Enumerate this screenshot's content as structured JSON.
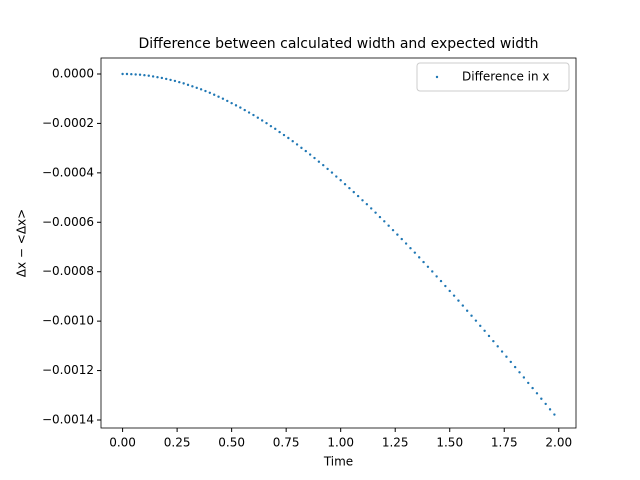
{
  "chart_data": {
    "type": "scatter",
    "title": "Difference between calculated width and expected width",
    "x_label": "Time",
    "y_label": "Δx − <Δx>",
    "x": [
      0,
      0.02,
      0.04,
      0.06,
      0.08,
      0.1,
      0.12,
      0.14,
      0.16,
      0.18,
      0.2,
      0.22,
      0.24,
      0.26,
      0.28,
      0.3,
      0.32,
      0.34,
      0.36,
      0.38,
      0.4,
      0.42,
      0.44,
      0.46,
      0.48,
      0.5,
      0.52,
      0.54,
      0.56,
      0.58,
      0.6,
      0.62,
      0.64,
      0.66,
      0.68,
      0.7,
      0.72,
      0.74,
      0.76,
      0.78,
      0.8,
      0.82,
      0.84,
      0.86,
      0.88,
      0.9,
      0.92,
      0.94,
      0.96,
      0.98,
      1,
      1.02,
      1.04,
      1.06,
      1.08,
      1.1,
      1.12,
      1.14,
      1.16,
      1.18,
      1.2,
      1.22,
      1.24,
      1.26,
      1.28,
      1.3,
      1.32,
      1.34,
      1.36,
      1.38,
      1.4,
      1.42,
      1.44,
      1.46,
      1.48,
      1.5,
      1.52,
      1.54,
      1.56,
      1.58,
      1.6,
      1.62,
      1.64,
      1.66,
      1.68,
      1.7,
      1.72,
      1.74,
      1.76,
      1.78,
      1.8,
      1.82,
      1.84,
      1.86,
      1.88,
      1.9,
      1.92,
      1.94,
      1.96,
      1.98
    ],
    "series": [
      {
        "name": "Difference in x",
        "color": "#1f77b4",
        "values": [
          0,
          0,
          -1e-06,
          -2e-06,
          -3e-06,
          -5e-06,
          -7e-06,
          -1e-05,
          -1.3e-05,
          -1.6e-05,
          -2e-05,
          -2.4e-05,
          -2.8e-05,
          -3.3e-05,
          -3.8e-05,
          -4.4e-05,
          -5e-05,
          -5.6e-05,
          -6.2e-05,
          -6.9e-05,
          -7.6e-05,
          -8.4e-05,
          -9.2e-05,
          -0.0001,
          -0.000109,
          -0.000118,
          -0.000127,
          -0.000136,
          -0.000146,
          -0.000156,
          -0.000166,
          -0.000177,
          -0.000188,
          -0.000199,
          -0.000211,
          -0.000222,
          -0.000235,
          -0.000247,
          -0.000259,
          -0.000272,
          -0.000285,
          -0.000299,
          -0.000312,
          -0.000326,
          -0.00034,
          -0.000355,
          -0.000369,
          -0.000384,
          -0.000399,
          -0.000415,
          -0.00043,
          -0.000446,
          -0.000462,
          -0.000478,
          -0.000494,
          -0.000511,
          -0.000527,
          -0.000544,
          -0.000561,
          -0.000579,
          -0.000596,
          -0.000614,
          -0.000632,
          -0.00065,
          -0.000668,
          -0.000686,
          -0.000705,
          -0.000723,
          -0.000742,
          -0.000761,
          -0.00078,
          -0.000799,
          -0.000819,
          -0.000838,
          -0.000858,
          -0.000878,
          -0.000897,
          -0.000917,
          -0.000937,
          -0.000958,
          -0.000978,
          -0.000998,
          -0.001019,
          -0.001039,
          -0.00106,
          -0.001081,
          -0.001102,
          -0.001123,
          -0.001144,
          -0.001165,
          -0.001186,
          -0.001207,
          -0.001228,
          -0.00125,
          -0.001271,
          -0.001292,
          -0.001314,
          -0.001335,
          -0.001357,
          -0.001378
        ]
      }
    ],
    "xlim": [
      -0.099,
      2.079
    ],
    "ylim": [
      -0.0014324,
      6.47e-05
    ],
    "xticks": [
      {
        "value": 0,
        "label": "0.00"
      },
      {
        "value": 0.25,
        "label": "0.25"
      },
      {
        "value": 0.5,
        "label": "0.50"
      },
      {
        "value": 0.75,
        "label": "0.75"
      },
      {
        "value": 1,
        "label": "1.00"
      },
      {
        "value": 1.25,
        "label": "1.25"
      },
      {
        "value": 1.5,
        "label": "1.50"
      },
      {
        "value": 1.75,
        "label": "1.75"
      },
      {
        "value": 2,
        "label": "2.00"
      }
    ],
    "yticks": [
      {
        "value": 0,
        "label": "0.0000"
      },
      {
        "value": -0.0002,
        "label": "−0.0002"
      },
      {
        "value": -0.0004,
        "label": "−0.0004"
      },
      {
        "value": -0.0006,
        "label": "−0.0006"
      },
      {
        "value": -0.0008,
        "label": "−0.0008"
      },
      {
        "value": -0.001,
        "label": "−0.0010"
      },
      {
        "value": -0.0012,
        "label": "−0.0012"
      },
      {
        "value": -0.0014,
        "label": "−0.0014"
      }
    ],
    "legend": "upper right"
  }
}
